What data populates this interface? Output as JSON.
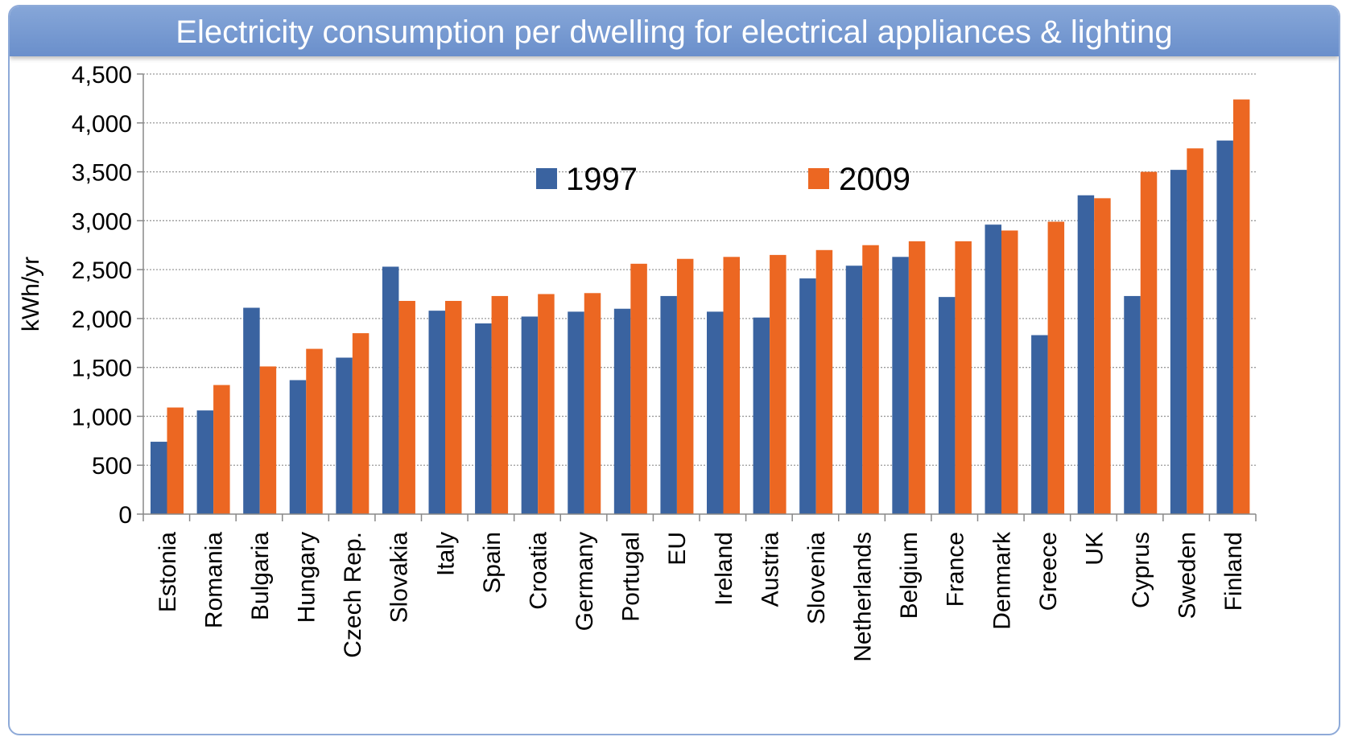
{
  "title": "Electricity consumption per dwelling for electrical appliances & lighting",
  "chart_data": {
    "type": "bar",
    "title": "Electricity consumption per dwelling for electrical appliances & lighting",
    "ylabel": "kWh/yr",
    "xlabel": "",
    "ylim": [
      0,
      4500
    ],
    "yticks": [
      "0",
      "500",
      "1,000",
      "1,500",
      "2,000",
      "2,500",
      "3,000",
      "3,500",
      "4,000",
      "4,500"
    ],
    "ytick_values": [
      0,
      500,
      1000,
      1500,
      2000,
      2500,
      3000,
      3500,
      4000,
      4500
    ],
    "grid": true,
    "legend_position": "top-center",
    "categories": [
      "Estonia",
      "Romania",
      "Bulgaria",
      "Hungary",
      "Czech Rep.",
      "Slovakia",
      "Italy",
      "Spain",
      "Croatia",
      "Germany",
      "Portugal",
      "EU",
      "Ireland",
      "Austria",
      "Slovenia",
      "Netherlands",
      "Belgium",
      "France",
      "Denmark",
      "Greece",
      "UK",
      "Cyprus",
      "Sweden",
      "Finland"
    ],
    "series": [
      {
        "name": "1997",
        "color": "#3a63a0",
        "values": [
          740,
          1060,
          2110,
          1370,
          1600,
          2530,
          2080,
          1950,
          2020,
          2070,
          2100,
          2230,
          2070,
          2010,
          2410,
          2540,
          2630,
          2220,
          2960,
          1830,
          3260,
          2230,
          3520,
          3820
        ]
      },
      {
        "name": "2009",
        "color": "#ec6722",
        "values": [
          1090,
          1320,
          1510,
          1690,
          1850,
          2180,
          2180,
          2230,
          2250,
          2260,
          2560,
          2610,
          2630,
          2650,
          2700,
          2750,
          2790,
          2790,
          2900,
          2990,
          3230,
          3500,
          3740,
          4240
        ]
      }
    ]
  }
}
